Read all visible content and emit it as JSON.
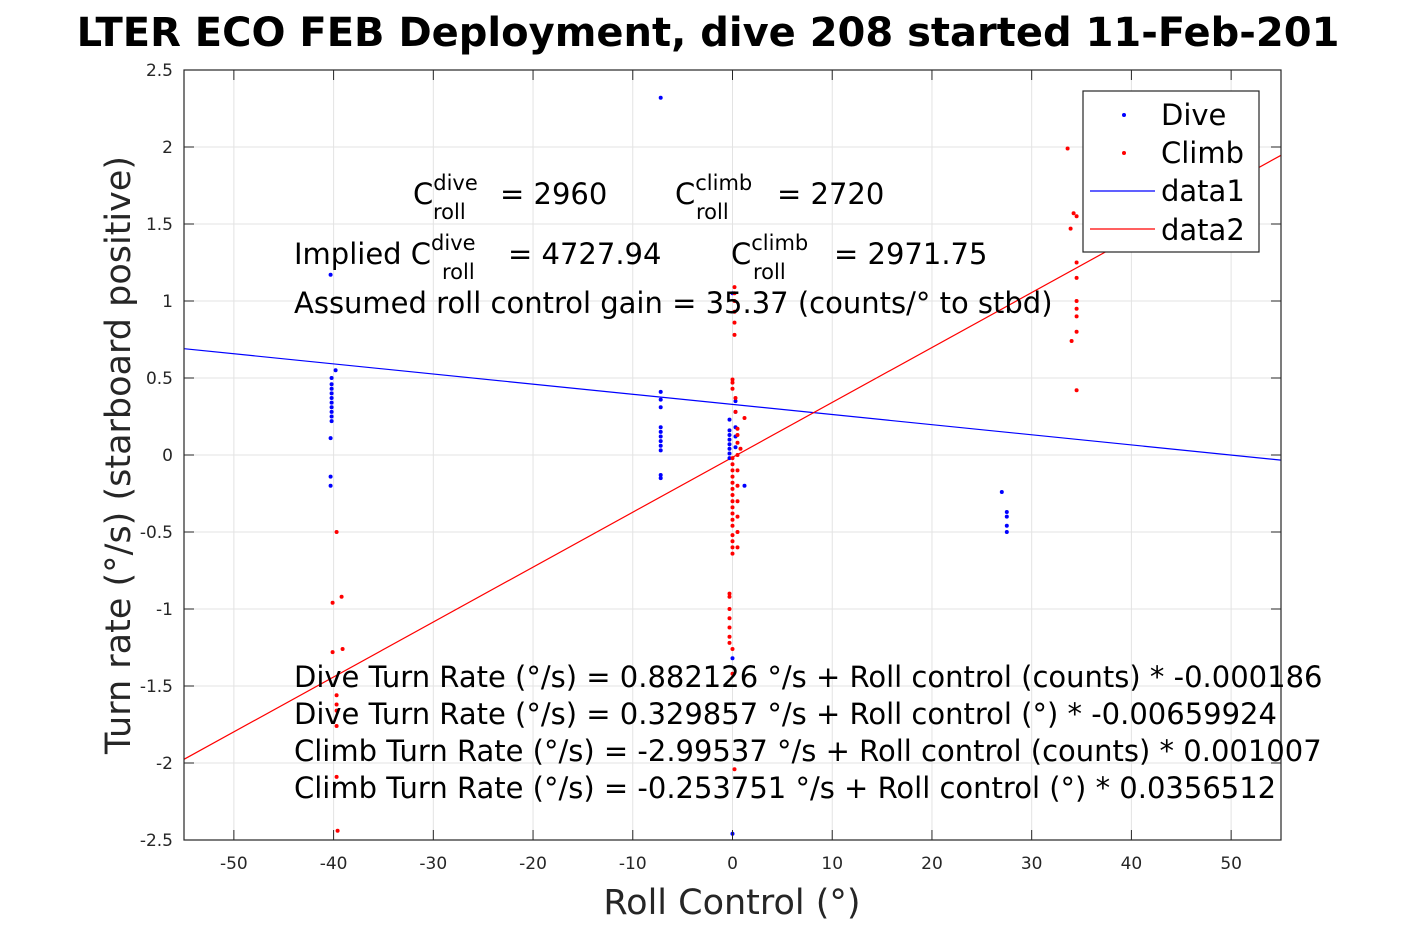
{
  "chart_data": {
    "type": "scatter",
    "title": "LTER ECO FEB Deployment, dive 208 started 11-Feb-201",
    "xlabel": "Roll Control (°)",
    "ylabel": "Turn rate (°/s) (starboard positive)",
    "xlim": [
      -55,
      55
    ],
    "ylim": [
      -2.5,
      2.5
    ],
    "xticks": [
      -50,
      -40,
      -30,
      -20,
      -10,
      0,
      10,
      20,
      30,
      40,
      50
    ],
    "xtick_labels": [
      "-50",
      "-40",
      "-30",
      "-20",
      "-10",
      "0",
      "10",
      "20",
      "30",
      "40",
      "50"
    ],
    "yticks": [
      -2.5,
      -2,
      -1.5,
      -1,
      -0.5,
      0,
      0.5,
      1,
      1.5,
      2,
      2.5
    ],
    "ytick_labels": [
      "-2.5",
      "-2",
      "-1.5",
      "-1",
      "-0.5",
      "0",
      "0.5",
      "1",
      "1.5",
      "2",
      "2.5"
    ],
    "grid": true,
    "legend_position": "top-right",
    "series": [
      {
        "name": "Dive",
        "kind": "points",
        "color": "#0000ff",
        "points": [
          [
            -40.3,
            1.17
          ],
          [
            -39.8,
            0.55
          ],
          [
            -40.2,
            0.5
          ],
          [
            -40.2,
            0.46
          ],
          [
            -40.2,
            0.43
          ],
          [
            -40.2,
            0.4
          ],
          [
            -40.2,
            0.37
          ],
          [
            -40.2,
            0.34
          ],
          [
            -40.2,
            0.31
          ],
          [
            -40.2,
            0.28
          ],
          [
            -40.2,
            0.25
          ],
          [
            -40.2,
            0.22
          ],
          [
            -40.3,
            0.11
          ],
          [
            -40.3,
            -0.14
          ],
          [
            -40.3,
            -0.2
          ],
          [
            -7.2,
            2.32
          ],
          [
            -7.2,
            0.41
          ],
          [
            -7.2,
            0.36
          ],
          [
            -7.2,
            0.31
          ],
          [
            -7.2,
            0.18
          ],
          [
            -7.2,
            0.15
          ],
          [
            -7.2,
            0.12
          ],
          [
            -7.2,
            0.09
          ],
          [
            -7.2,
            0.06
          ],
          [
            -7.2,
            0.03
          ],
          [
            -7.2,
            -0.13
          ],
          [
            -7.2,
            -0.15
          ],
          [
            -0.3,
            0.23
          ],
          [
            -0.3,
            0.16
          ],
          [
            -0.3,
            0.13
          ],
          [
            -0.3,
            0.1
          ],
          [
            -0.3,
            0.07
          ],
          [
            -0.3,
            0.04
          ],
          [
            -0.3,
            0.01
          ],
          [
            -0.3,
            -0.02
          ],
          [
            0.3,
            0.35
          ],
          [
            0.3,
            0.28
          ],
          [
            0.3,
            0.18
          ],
          [
            0.3,
            0.12
          ],
          [
            0.3,
            0.05
          ],
          [
            0.0,
            1.05
          ],
          [
            1.2,
            -0.2
          ],
          [
            0.0,
            -1.32
          ],
          [
            0.0,
            -2.46
          ],
          [
            27.0,
            -0.24
          ],
          [
            27.5,
            -0.37
          ],
          [
            27.5,
            -0.4
          ],
          [
            27.5,
            -0.46
          ],
          [
            27.5,
            -0.5
          ]
        ]
      },
      {
        "name": "Climb",
        "kind": "points",
        "color": "#ff0000",
        "points": [
          [
            -39.7,
            -0.5
          ],
          [
            -40.1,
            -0.96
          ],
          [
            -39.2,
            -0.92
          ],
          [
            -40.1,
            -1.28
          ],
          [
            -39.1,
            -1.26
          ],
          [
            -39.7,
            -1.56
          ],
          [
            -39.7,
            -1.62
          ],
          [
            -39.7,
            -1.66
          ],
          [
            -39.7,
            -1.76
          ],
          [
            -39.7,
            -2.09
          ],
          [
            -39.6,
            -2.44
          ],
          [
            0.2,
            1.09
          ],
          [
            0.2,
            1.05
          ],
          [
            0.2,
            1.0
          ],
          [
            0.2,
            0.93
          ],
          [
            0.2,
            0.86
          ],
          [
            0.2,
            0.78
          ],
          [
            0.0,
            0.49
          ],
          [
            0.0,
            0.47
          ],
          [
            0.0,
            0.43
          ],
          [
            0.3,
            0.37
          ],
          [
            0.3,
            0.28
          ],
          [
            1.2,
            0.24
          ],
          [
            0.5,
            0.17
          ],
          [
            0.5,
            0.13
          ],
          [
            0.5,
            0.08
          ],
          [
            0.8,
            0.04
          ],
          [
            0.5,
            0.0
          ],
          [
            0.0,
            -0.02
          ],
          [
            0.0,
            -0.06
          ],
          [
            0.0,
            -0.1
          ],
          [
            0.0,
            -0.14
          ],
          [
            0.0,
            -0.18
          ],
          [
            0.0,
            -0.22
          ],
          [
            0.0,
            -0.26
          ],
          [
            0.0,
            -0.3
          ],
          [
            0.0,
            -0.34
          ],
          [
            0.0,
            -0.38
          ],
          [
            0.0,
            -0.42
          ],
          [
            0.0,
            -0.46
          ],
          [
            0.0,
            -0.52
          ],
          [
            0.0,
            -0.56
          ],
          [
            0.0,
            -0.6
          ],
          [
            0.0,
            -0.64
          ],
          [
            0.5,
            -0.1
          ],
          [
            0.5,
            -0.2
          ],
          [
            0.5,
            -0.3
          ],
          [
            0.5,
            -0.4
          ],
          [
            0.5,
            -0.5
          ],
          [
            0.5,
            -0.6
          ],
          [
            -0.3,
            -0.9
          ],
          [
            -0.3,
            -0.92
          ],
          [
            -0.3,
            -1.0
          ],
          [
            -0.3,
            -1.06
          ],
          [
            -0.3,
            -1.12
          ],
          [
            -0.3,
            -1.18
          ],
          [
            -0.3,
            -1.22
          ],
          [
            0.0,
            -1.26
          ],
          [
            0.0,
            -1.42
          ],
          [
            0.2,
            -2.04
          ],
          [
            33.6,
            1.99
          ],
          [
            34.2,
            1.57
          ],
          [
            34.5,
            1.55
          ],
          [
            33.9,
            1.47
          ],
          [
            34.5,
            1.25
          ],
          [
            34.5,
            1.15
          ],
          [
            34.5,
            1.0
          ],
          [
            34.5,
            0.95
          ],
          [
            34.5,
            0.9
          ],
          [
            34.5,
            0.8
          ],
          [
            34.0,
            0.74
          ],
          [
            34.5,
            0.42
          ]
        ]
      },
      {
        "name": "data1",
        "kind": "line",
        "color": "#0000ff",
        "points": [
          [
            -55,
            0.69
          ],
          [
            55,
            -0.033
          ]
        ]
      },
      {
        "name": "data2",
        "kind": "line",
        "color": "#ff0000",
        "points": [
          [
            -55,
            -1.976
          ],
          [
            55,
            1.946
          ]
        ]
      }
    ],
    "annotations": {
      "c_dive_prefix": "C",
      "c_dive_sup": "dive",
      "c_dive_sub": "roll",
      "c_dive_val": "= 2960",
      "c_climb_prefix": "C",
      "c_climb_sup": "climb",
      "c_climb_sub": "roll",
      "c_climb_val": "= 2720",
      "implied_prefix": "Implied C",
      "implied_sup": "dive",
      "implied_sub": "roll",
      "implied_val": "= 4727.94",
      "c2_prefix": "C",
      "c2_sup": "climb",
      "c2_sub": "roll",
      "c2_val": "= 2971.75",
      "gain": "Assumed roll control gain = 35.37 (counts/° to stbd)",
      "fit1": "Dive Turn Rate (°/s) = 0.882126 °/s + Roll control (counts) * -0.000186",
      "fit2": "Dive Turn Rate (°/s) = 0.329857 °/s + Roll control (°) * -0.00659924",
      "fit3": "Climb Turn Rate (°/s) = -2.99537 °/s + Roll control (counts) * 0.001007",
      "fit4": "Climb Turn Rate (°/s) = -0.253751 °/s + Roll control (°) * 0.0356512"
    }
  }
}
